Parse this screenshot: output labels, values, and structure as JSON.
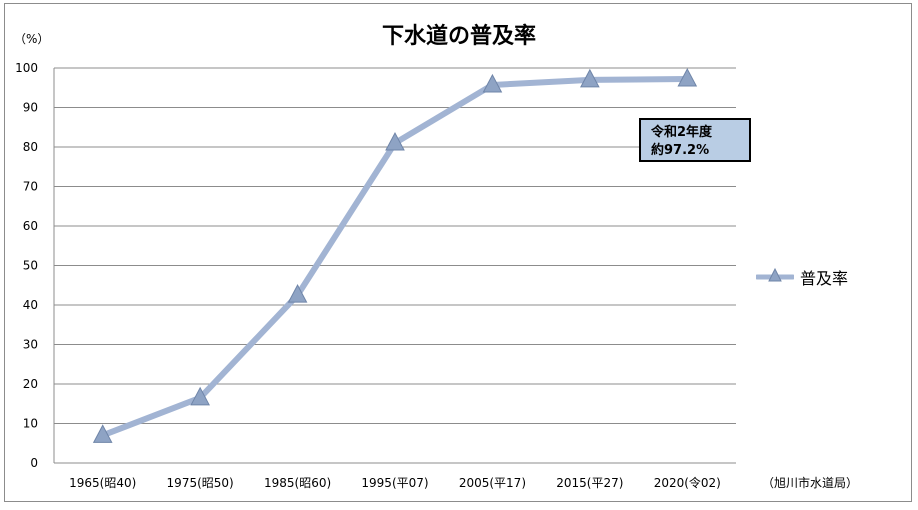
{
  "chart_data": {
    "type": "line",
    "title": "下水道の普及率",
    "unit_label": "（%）",
    "source_note": "（旭川市水道局）",
    "categories": [
      "1965(昭40)",
      "1975(昭50)",
      "1985(昭60)",
      "1995(平07)",
      "2005(平17)",
      "2015(平27)",
      "2020(令02)"
    ],
    "series": [
      {
        "name": "普及率",
        "values": [
          7,
          16.5,
          42.5,
          81,
          95.7,
          97,
          97.2
        ],
        "color": "#a2b4d3",
        "marker": "triangle"
      }
    ],
    "ylim": [
      0,
      100
    ],
    "yticks": [
      0,
      10,
      20,
      30,
      40,
      50,
      60,
      70,
      80,
      90,
      100
    ],
    "grid": true,
    "legend_position": "right",
    "annotation": {
      "line1": "令和2年度",
      "line2": "約97.2%"
    }
  }
}
